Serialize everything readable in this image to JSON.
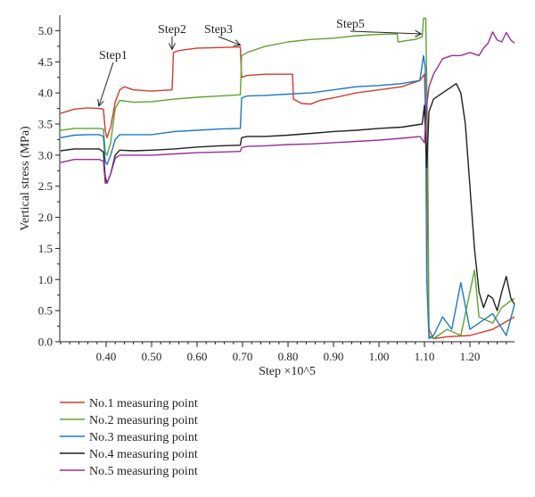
{
  "chart_data": {
    "type": "line",
    "xlabel": "Step ×10^5",
    "ylabel": "Vertical stress (MPa)",
    "xlim": [
      0.298,
      1.298
    ],
    "ylim": [
      0,
      5.25
    ],
    "x_ticks": [
      0.4,
      0.5,
      0.6,
      0.7,
      0.8,
      0.9,
      1.0,
      1.1,
      1.2
    ],
    "x_tick_labels": [
      "0.40",
      "0.50",
      "0.60",
      "0.70",
      "0.80",
      "0.90",
      "1.00",
      "1.10",
      "1.20"
    ],
    "y_ticks": [
      0,
      0.5,
      1.0,
      1.5,
      2.0,
      2.5,
      3.0,
      3.5,
      4.0,
      4.5,
      5.0
    ],
    "y_tick_labels": [
      "0.0",
      "0.5",
      "1.0",
      "1.5",
      "2.0",
      "2.5",
      "3.0",
      "3.5",
      "4.0",
      "4.5",
      "5.0"
    ],
    "grid": false,
    "legend_position": "bottom-left, below plot",
    "series": [
      {
        "name": "No.1 measuring point",
        "color": "#d63a2a",
        "points": [
          [
            0.3,
            3.67
          ],
          [
            0.33,
            3.74
          ],
          [
            0.36,
            3.76
          ],
          [
            0.385,
            3.75
          ],
          [
            0.394,
            3.74
          ],
          [
            0.398,
            3.4
          ],
          [
            0.402,
            3.28
          ],
          [
            0.41,
            3.45
          ],
          [
            0.42,
            3.85
          ],
          [
            0.43,
            4.05
          ],
          [
            0.44,
            4.1
          ],
          [
            0.46,
            4.05
          ],
          [
            0.5,
            4.03
          ],
          [
            0.545,
            4.05
          ],
          [
            0.548,
            4.65
          ],
          [
            0.56,
            4.68
          ],
          [
            0.6,
            4.72
          ],
          [
            0.65,
            4.73
          ],
          [
            0.695,
            4.74
          ],
          [
            0.698,
            4.25
          ],
          [
            0.71,
            4.28
          ],
          [
            0.75,
            4.3
          ],
          [
            0.8,
            4.3
          ],
          [
            0.81,
            4.3
          ],
          [
            0.812,
            3.9
          ],
          [
            0.83,
            3.83
          ],
          [
            0.85,
            3.82
          ],
          [
            0.87,
            3.88
          ],
          [
            0.9,
            3.92
          ],
          [
            0.95,
            4.0
          ],
          [
            1.0,
            4.05
          ],
          [
            1.05,
            4.1
          ],
          [
            1.09,
            4.2
          ],
          [
            1.1,
            4.3
          ],
          [
            1.105,
            3.0
          ],
          [
            1.11,
            0.2
          ],
          [
            1.12,
            0.05
          ],
          [
            1.15,
            0.08
          ],
          [
            1.2,
            0.1
          ],
          [
            1.25,
            0.2
          ],
          [
            1.298,
            0.4
          ]
        ]
      },
      {
        "name": "No.2 measuring point",
        "color": "#5fa334",
        "points": [
          [
            0.3,
            3.4
          ],
          [
            0.33,
            3.43
          ],
          [
            0.36,
            3.43
          ],
          [
            0.385,
            3.43
          ],
          [
            0.394,
            3.42
          ],
          [
            0.398,
            3.05
          ],
          [
            0.402,
            3.0
          ],
          [
            0.41,
            3.2
          ],
          [
            0.42,
            3.75
          ],
          [
            0.43,
            3.88
          ],
          [
            0.46,
            3.85
          ],
          [
            0.5,
            3.86
          ],
          [
            0.55,
            3.9
          ],
          [
            0.6,
            3.93
          ],
          [
            0.65,
            3.95
          ],
          [
            0.695,
            3.97
          ],
          [
            0.698,
            4.6
          ],
          [
            0.71,
            4.65
          ],
          [
            0.75,
            4.75
          ],
          [
            0.8,
            4.82
          ],
          [
            0.85,
            4.86
          ],
          [
            0.9,
            4.88
          ],
          [
            0.95,
            4.92
          ],
          [
            1.0,
            4.94
          ],
          [
            1.04,
            4.95
          ],
          [
            1.042,
            4.82
          ],
          [
            1.06,
            4.84
          ],
          [
            1.08,
            4.86
          ],
          [
            1.095,
            4.9
          ],
          [
            1.098,
            5.2
          ],
          [
            1.103,
            5.2
          ],
          [
            1.107,
            3.2
          ],
          [
            1.11,
            0.1
          ],
          [
            1.12,
            0.05
          ],
          [
            1.15,
            0.2
          ],
          [
            1.18,
            0.1
          ],
          [
            1.21,
            1.15
          ],
          [
            1.22,
            0.4
          ],
          [
            1.25,
            0.3
          ],
          [
            1.27,
            0.55
          ],
          [
            1.298,
            0.7
          ]
        ]
      },
      {
        "name": "No.3 measuring point",
        "color": "#1f78c4",
        "points": [
          [
            0.3,
            3.28
          ],
          [
            0.33,
            3.32
          ],
          [
            0.36,
            3.33
          ],
          [
            0.385,
            3.33
          ],
          [
            0.394,
            3.3
          ],
          [
            0.398,
            2.9
          ],
          [
            0.402,
            2.85
          ],
          [
            0.41,
            3.0
          ],
          [
            0.42,
            3.25
          ],
          [
            0.43,
            3.33
          ],
          [
            0.46,
            3.33
          ],
          [
            0.5,
            3.33
          ],
          [
            0.55,
            3.38
          ],
          [
            0.6,
            3.4
          ],
          [
            0.65,
            3.42
          ],
          [
            0.695,
            3.43
          ],
          [
            0.698,
            3.92
          ],
          [
            0.71,
            3.95
          ],
          [
            0.75,
            3.96
          ],
          [
            0.8,
            3.98
          ],
          [
            0.85,
            4.0
          ],
          [
            0.9,
            4.05
          ],
          [
            0.95,
            4.1
          ],
          [
            1.0,
            4.12
          ],
          [
            1.05,
            4.15
          ],
          [
            1.09,
            4.2
          ],
          [
            1.098,
            4.6
          ],
          [
            1.102,
            4.4
          ],
          [
            1.105,
            1.0
          ],
          [
            1.11,
            0.05
          ],
          [
            1.12,
            0.1
          ],
          [
            1.14,
            0.4
          ],
          [
            1.16,
            0.2
          ],
          [
            1.18,
            0.95
          ],
          [
            1.2,
            0.2
          ],
          [
            1.22,
            0.3
          ],
          [
            1.25,
            0.45
          ],
          [
            1.28,
            0.1
          ],
          [
            1.298,
            0.6
          ]
        ]
      },
      {
        "name": "No.4 measuring point",
        "color": "#231f20",
        "points": [
          [
            0.3,
            3.07
          ],
          [
            0.33,
            3.1
          ],
          [
            0.36,
            3.1
          ],
          [
            0.385,
            3.1
          ],
          [
            0.394,
            3.05
          ],
          [
            0.398,
            2.65
          ],
          [
            0.402,
            2.55
          ],
          [
            0.41,
            2.7
          ],
          [
            0.42,
            3.0
          ],
          [
            0.43,
            3.08
          ],
          [
            0.46,
            3.07
          ],
          [
            0.5,
            3.08
          ],
          [
            0.55,
            3.1
          ],
          [
            0.6,
            3.13
          ],
          [
            0.65,
            3.15
          ],
          [
            0.695,
            3.16
          ],
          [
            0.698,
            3.28
          ],
          [
            0.71,
            3.3
          ],
          [
            0.75,
            3.3
          ],
          [
            0.8,
            3.32
          ],
          [
            0.85,
            3.35
          ],
          [
            0.9,
            3.38
          ],
          [
            0.95,
            3.4
          ],
          [
            1.0,
            3.43
          ],
          [
            1.05,
            3.45
          ],
          [
            1.095,
            3.5
          ],
          [
            1.1,
            3.8
          ],
          [
            1.105,
            2.8
          ],
          [
            1.11,
            3.7
          ],
          [
            1.12,
            3.9
          ],
          [
            1.14,
            4.0
          ],
          [
            1.16,
            4.1
          ],
          [
            1.17,
            4.15
          ],
          [
            1.18,
            4.0
          ],
          [
            1.19,
            3.5
          ],
          [
            1.2,
            2.5
          ],
          [
            1.21,
            1.5
          ],
          [
            1.22,
            0.8
          ],
          [
            1.23,
            0.55
          ],
          [
            1.24,
            0.75
          ],
          [
            1.25,
            0.7
          ],
          [
            1.26,
            0.5
          ],
          [
            1.27,
            0.8
          ],
          [
            1.28,
            1.05
          ],
          [
            1.29,
            0.7
          ],
          [
            1.298,
            0.6
          ]
        ]
      },
      {
        "name": "No.5 measuring point",
        "color": "#9c2b9a",
        "points": [
          [
            0.3,
            2.88
          ],
          [
            0.33,
            2.93
          ],
          [
            0.36,
            2.93
          ],
          [
            0.385,
            2.93
          ],
          [
            0.394,
            2.9
          ],
          [
            0.398,
            2.55
          ],
          [
            0.402,
            2.55
          ],
          [
            0.41,
            2.7
          ],
          [
            0.42,
            2.95
          ],
          [
            0.43,
            3.0
          ],
          [
            0.46,
            3.0
          ],
          [
            0.5,
            3.0
          ],
          [
            0.55,
            3.02
          ],
          [
            0.6,
            3.04
          ],
          [
            0.65,
            3.05
          ],
          [
            0.695,
            3.06
          ],
          [
            0.698,
            3.12
          ],
          [
            0.71,
            3.14
          ],
          [
            0.75,
            3.15
          ],
          [
            0.8,
            3.17
          ],
          [
            0.85,
            3.18
          ],
          [
            0.9,
            3.2
          ],
          [
            0.95,
            3.22
          ],
          [
            1.0,
            3.24
          ],
          [
            1.05,
            3.27
          ],
          [
            1.09,
            3.3
          ],
          [
            1.1,
            3.2
          ],
          [
            1.105,
            3.8
          ],
          [
            1.11,
            4.1
          ],
          [
            1.12,
            4.3
          ],
          [
            1.14,
            4.55
          ],
          [
            1.16,
            4.6
          ],
          [
            1.18,
            4.6
          ],
          [
            1.2,
            4.65
          ],
          [
            1.22,
            4.6
          ],
          [
            1.23,
            4.72
          ],
          [
            1.24,
            4.8
          ],
          [
            1.25,
            4.98
          ],
          [
            1.26,
            4.85
          ],
          [
            1.27,
            4.82
          ],
          [
            1.28,
            4.97
          ],
          [
            1.29,
            4.85
          ],
          [
            1.298,
            4.8
          ]
        ]
      }
    ],
    "annotations": [
      {
        "label": "Step1",
        "x": 0.384,
        "y": 3.76
      },
      {
        "label": "Step2",
        "x": 0.545,
        "y": 4.67
      },
      {
        "label": "Step3",
        "x": 0.695,
        "y": 4.74
      },
      {
        "label": "Step5",
        "x": 1.093,
        "y": 4.92
      }
    ]
  }
}
